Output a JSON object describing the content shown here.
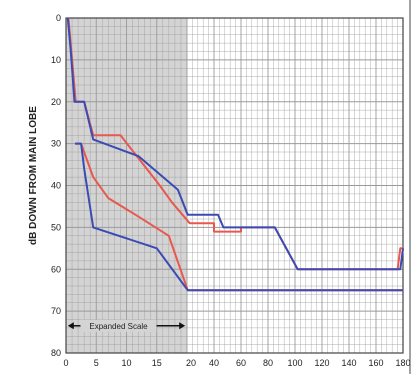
{
  "chart_data": {
    "type": "line",
    "ylabel": "dB DOWN FROM MAIN LOBE",
    "annotation": "Expanded Scale",
    "x_ticks": [
      "0",
      "5",
      "10",
      "15",
      "20",
      "40",
      "60",
      "80",
      "100",
      "120",
      "140",
      "160",
      "180"
    ],
    "y_ticks": [
      "0",
      "10",
      "20",
      "30",
      "40",
      "50",
      "60",
      "70",
      "80"
    ],
    "x_segments": [
      {
        "name": "expanded",
        "range": [
          0,
          20
        ]
      },
      {
        "name": "normal",
        "range": [
          20,
          180
        ]
      }
    ],
    "ylim": [
      0,
      80
    ],
    "shaded_region": [
      0,
      20
    ],
    "grid": true,
    "colors": {
      "blue": "#3b4bb3",
      "red": "#e8584e",
      "shade": "#d4d4d4",
      "grid": "#9a9a9a"
    },
    "series": [
      {
        "color": "#e8584e",
        "points": [
          [
            0.4,
            0
          ],
          [
            0.9,
            8
          ],
          [
            1.6,
            20
          ],
          [
            3.0,
            20
          ],
          [
            4.5,
            28
          ],
          [
            9.0,
            28
          ],
          [
            15.5,
            40
          ],
          [
            17.5,
            44
          ],
          [
            22,
            49
          ],
          [
            40,
            49
          ],
          [
            40,
            51
          ],
          [
            60,
            51
          ],
          [
            60,
            50
          ],
          [
            85,
            50
          ],
          [
            102,
            60
          ],
          [
            176,
            60
          ],
          [
            178,
            55
          ],
          [
            180,
            55
          ]
        ]
      },
      {
        "color": "#3b4bb3",
        "points": [
          [
            0.3,
            0
          ],
          [
            0.8,
            8
          ],
          [
            1.4,
            20
          ],
          [
            3.0,
            20
          ],
          [
            4.5,
            29
          ],
          [
            12.0,
            33
          ],
          [
            18.5,
            41
          ],
          [
            20.5,
            47
          ],
          [
            43,
            47
          ],
          [
            47,
            50
          ],
          [
            85,
            50
          ],
          [
            102,
            60
          ],
          [
            178,
            60
          ],
          [
            180,
            55
          ]
        ]
      },
      {
        "color": "#e8584e",
        "points": [
          [
            1.5,
            30
          ],
          [
            2.5,
            30
          ],
          [
            4.5,
            38
          ],
          [
            7.0,
            43
          ],
          [
            11.5,
            47
          ],
          [
            17.0,
            52
          ],
          [
            20.5,
            65
          ],
          [
            180,
            65
          ]
        ]
      },
      {
        "color": "#3b4bb3",
        "points": [
          [
            1.5,
            30
          ],
          [
            2.5,
            30
          ],
          [
            3.0,
            36
          ],
          [
            4.5,
            50
          ],
          [
            15.0,
            55
          ],
          [
            20.5,
            65
          ],
          [
            180,
            65
          ]
        ]
      }
    ]
  }
}
